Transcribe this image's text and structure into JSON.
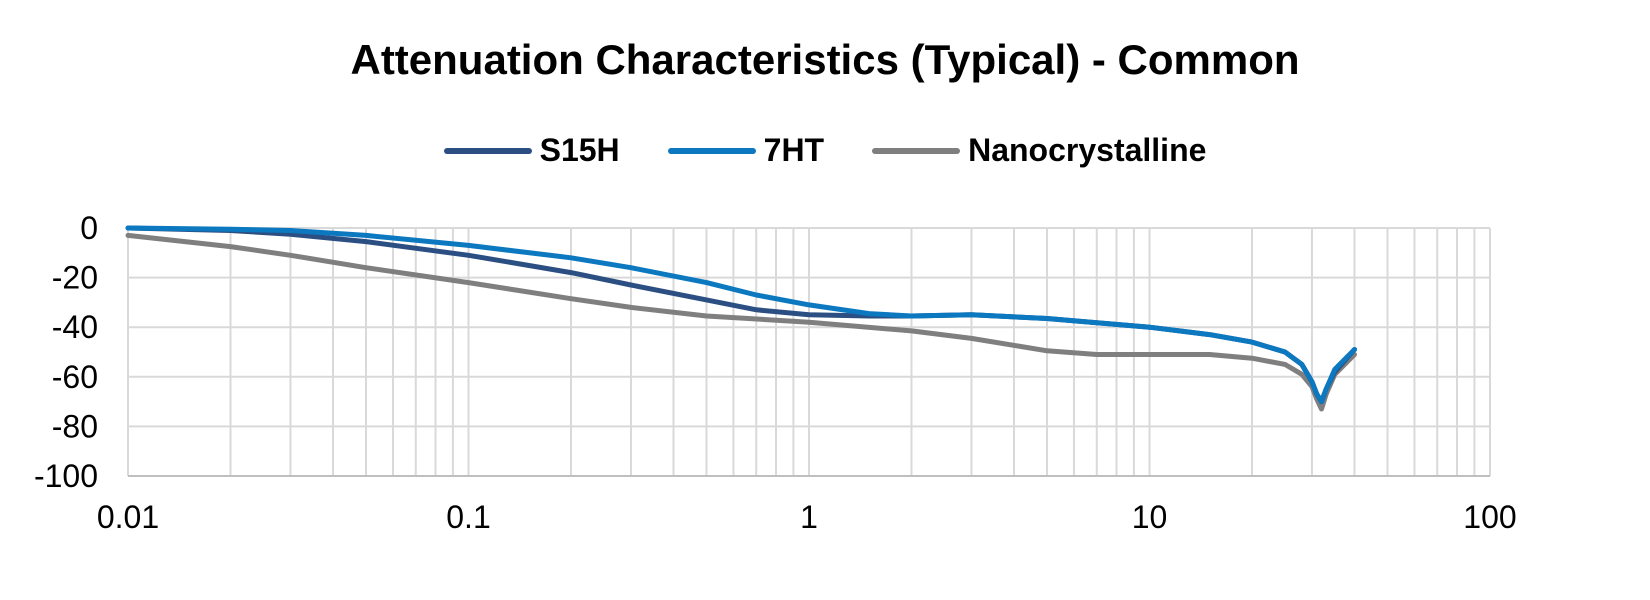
{
  "chart_data": {
    "type": "line",
    "title": "Attenuation Characteristics (Typical) - Common",
    "xlabel": "",
    "ylabel": "",
    "xscale": "log",
    "xlim": [
      0.01,
      100
    ],
    "ylim": [
      -100,
      0
    ],
    "x_ticks": [
      "0.01",
      "0.1",
      "1",
      "10",
      "100"
    ],
    "y_ticks": [
      "0",
      "-20",
      "-40",
      "-60",
      "-80",
      "-100"
    ],
    "grid": true,
    "legend_position": "top",
    "series": [
      {
        "name": "S15H",
        "color": "#2b4f82",
        "x": [
          0.01,
          0.02,
          0.03,
          0.05,
          0.1,
          0.2,
          0.3,
          0.5,
          0.7,
          1,
          1.5,
          2,
          3,
          5,
          10,
          15,
          20,
          25,
          28,
          30,
          31,
          32,
          33,
          35,
          40
        ],
        "y": [
          0,
          -1,
          -2.5,
          -5.5,
          -11,
          -18,
          -23,
          -29,
          -33,
          -35,
          -35.5,
          -35.5,
          -35,
          -36.5,
          -40,
          -43,
          -46,
          -50,
          -55,
          -62,
          -67,
          -70,
          -65,
          -58,
          -49
        ]
      },
      {
        "name": "7HT",
        "color": "#0b78bf",
        "x": [
          0.01,
          0.02,
          0.03,
          0.05,
          0.1,
          0.2,
          0.3,
          0.5,
          0.7,
          1,
          1.5,
          2,
          3,
          5,
          10,
          15,
          20,
          25,
          28,
          30,
          31,
          32,
          33,
          35,
          40
        ],
        "y": [
          0,
          -0.5,
          -1,
          -3,
          -7,
          -12,
          -16,
          -22,
          -27,
          -31,
          -34.5,
          -35.5,
          -35,
          -36.5,
          -40,
          -43,
          -46,
          -50,
          -55,
          -62,
          -67,
          -70,
          -65,
          -57,
          -49
        ]
      },
      {
        "name": "Nanocrystalline",
        "color": "#7f7f7f",
        "x": [
          0.01,
          0.02,
          0.03,
          0.05,
          0.1,
          0.2,
          0.3,
          0.5,
          1,
          2,
          3,
          5,
          7,
          10,
          15,
          20,
          25,
          28,
          30,
          31,
          32,
          33,
          35,
          40
        ],
        "y": [
          -3,
          -7.5,
          -11,
          -16,
          -22,
          -28.5,
          -32,
          -35.5,
          -38,
          -41.5,
          -44.5,
          -49.5,
          -51,
          -51,
          -51,
          -52.5,
          -55,
          -59,
          -64,
          -69,
          -73,
          -67,
          -59,
          -51
        ]
      }
    ]
  }
}
